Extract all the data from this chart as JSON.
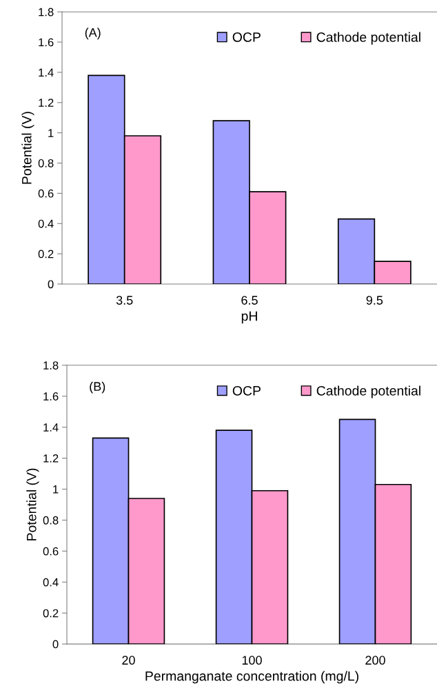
{
  "chart_data": [
    {
      "type": "bar",
      "annotations": [
        "(A)"
      ],
      "xlabel": "pH",
      "ylabel": "Potential (V)",
      "categories": [
        "3.5",
        "6.5",
        "9.5"
      ],
      "series": [
        {
          "name": "OCP",
          "color": "#9f9fff",
          "values": [
            1.38,
            1.08,
            0.43
          ]
        },
        {
          "name": "Cathode potential",
          "color": "#ff99cc",
          "values": [
            0.98,
            0.61,
            0.15
          ]
        }
      ],
      "ylim": [
        0,
        1.8
      ],
      "yticks": [
        0,
        0.2,
        0.4,
        0.6,
        0.8,
        1,
        1.2,
        1.4,
        1.6,
        1.8
      ],
      "grid": false,
      "legend": "top right"
    },
    {
      "type": "bar",
      "annotations": [
        "(B)"
      ],
      "xlabel": "Permanganate concentration (mg/L)",
      "ylabel": "Potential (V)",
      "categories": [
        "20",
        "100",
        "200"
      ],
      "series": [
        {
          "name": "OCP",
          "color": "#9f9fff",
          "values": [
            1.33,
            1.38,
            1.45
          ]
        },
        {
          "name": "Cathode potential",
          "color": "#ff99cc",
          "values": [
            0.94,
            0.99,
            1.03
          ]
        }
      ],
      "ylim": [
        0,
        1.8
      ],
      "yticks": [
        0,
        0.2,
        0.4,
        0.6,
        0.8,
        1,
        1.2,
        1.4,
        1.6,
        1.8
      ],
      "grid": false,
      "legend": "top right"
    }
  ]
}
